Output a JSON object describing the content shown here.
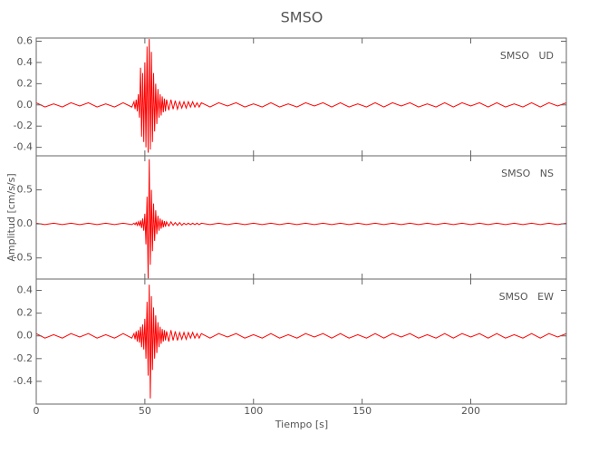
{
  "title": "SMSO",
  "x_label": "Tiempo [s]",
  "y_label": "Amplitud [cm/s/s]",
  "chart_data": [
    {
      "type": "line",
      "annotation": "SMSO   UD",
      "color": "#ff0000",
      "x": [
        0,
        4,
        8,
        12,
        16,
        20,
        24,
        28,
        32,
        36,
        40,
        44,
        45,
        45.5,
        46,
        46.5,
        47,
        47.5,
        48,
        48.5,
        49,
        49.5,
        50,
        50.5,
        51,
        51.5,
        52,
        52.5,
        53,
        53.5,
        54,
        54.5,
        55,
        55.5,
        56,
        56.5,
        57,
        57.5,
        58,
        58.5,
        59,
        59.5,
        60,
        61,
        62,
        63,
        64,
        65,
        66,
        67,
        68,
        69,
        70,
        71,
        72,
        73,
        74,
        75,
        76,
        80,
        84,
        88,
        92,
        96,
        100,
        104,
        108,
        112,
        116,
        120,
        124,
        128,
        132,
        136,
        140,
        144,
        148,
        152,
        156,
        160,
        164,
        168,
        172,
        176,
        180,
        184,
        188,
        192,
        196,
        200,
        204,
        208,
        212,
        216,
        220,
        224,
        228,
        232,
        236,
        240,
        244
      ],
      "values": [
        0.02,
        -0.02,
        0.01,
        -0.02,
        0.02,
        -0.01,
        0.02,
        -0.02,
        0.01,
        -0.02,
        0.02,
        -0.02,
        0.03,
        -0.04,
        0.05,
        -0.06,
        0.1,
        -0.12,
        0.35,
        -0.3,
        0.3,
        -0.35,
        0.4,
        -0.4,
        0.55,
        -0.45,
        0.62,
        -0.42,
        0.5,
        -0.35,
        0.3,
        -0.25,
        0.2,
        -0.18,
        0.15,
        -0.12,
        0.1,
        -0.1,
        0.08,
        -0.07,
        0.06,
        -0.06,
        0.05,
        -0.05,
        0.05,
        -0.04,
        0.04,
        -0.04,
        0.03,
        -0.03,
        0.03,
        -0.03,
        0.03,
        -0.02,
        0.03,
        -0.02,
        0.02,
        -0.02,
        0.02,
        -0.02,
        0.02,
        -0.01,
        0.02,
        -0.02,
        0.01,
        -0.02,
        0.02,
        -0.02,
        0.01,
        -0.02,
        0.02,
        -0.01,
        0.02,
        -0.02,
        0.02,
        -0.02,
        0.01,
        -0.02,
        0.02,
        -0.02,
        0.02,
        -0.01,
        0.02,
        -0.02,
        0.01,
        -0.02,
        0.02,
        -0.02,
        0.02,
        -0.01,
        0.02,
        -0.02,
        0.02,
        -0.02,
        0.01,
        -0.02,
        0.02,
        -0.02,
        0.02,
        -0.01,
        0.02
      ],
      "xlim": [
        0,
        244
      ],
      "xticks": [
        0,
        50,
        100,
        150,
        200
      ],
      "ylim": [
        -0.48,
        0.63
      ],
      "yticks": [
        -0.4,
        -0.2,
        {
          "value": 0,
          "label": "0.0"
        },
        0.2,
        0.4,
        0.6
      ]
    },
    {
      "type": "line",
      "annotation": "SMSO   NS",
      "color": "#ff0000",
      "x": [
        0,
        4,
        8,
        12,
        16,
        20,
        24,
        28,
        32,
        36,
        40,
        44,
        45,
        45.5,
        46,
        46.5,
        47,
        47.5,
        48,
        48.5,
        49,
        49.5,
        50,
        50.5,
        51,
        51.5,
        52,
        52.5,
        53,
        53.5,
        54,
        54.5,
        55,
        55.5,
        56,
        56.5,
        57,
        57.5,
        58,
        58.5,
        59,
        59.5,
        60,
        61,
        62,
        63,
        64,
        65,
        66,
        67,
        68,
        69,
        70,
        71,
        72,
        73,
        74,
        75,
        76,
        80,
        84,
        88,
        92,
        96,
        100,
        104,
        108,
        112,
        116,
        120,
        124,
        128,
        132,
        136,
        140,
        144,
        148,
        152,
        156,
        160,
        164,
        168,
        172,
        176,
        180,
        184,
        188,
        192,
        196,
        200,
        204,
        208,
        212,
        216,
        220,
        224,
        228,
        232,
        236,
        240,
        244
      ],
      "values": [
        0.01,
        -0.01,
        0.01,
        -0.01,
        0.01,
        -0.01,
        0.01,
        -0.01,
        0.01,
        -0.01,
        0.01,
        -0.01,
        0.01,
        -0.01,
        0.02,
        -0.02,
        0.03,
        -0.03,
        0.05,
        -0.06,
        0.08,
        -0.1,
        0.15,
        -0.3,
        0.4,
        -0.8,
        0.95,
        -0.6,
        0.5,
        -0.4,
        0.3,
        -0.25,
        0.2,
        -0.15,
        0.12,
        -0.1,
        0.08,
        -0.07,
        0.06,
        -0.05,
        0.04,
        -0.04,
        0.03,
        -0.03,
        0.03,
        -0.02,
        0.02,
        -0.02,
        0.02,
        -0.02,
        0.01,
        -0.01,
        0.01,
        -0.01,
        0.01,
        -0.01,
        0.01,
        -0.01,
        0.01,
        -0.01,
        0.01,
        -0.01,
        0.01,
        -0.01,
        0.01,
        -0.01,
        0.01,
        -0.01,
        0.01,
        -0.01,
        0.01,
        -0.01,
        0.01,
        -0.01,
        0.01,
        -0.01,
        0.01,
        -0.01,
        0.01,
        -0.01,
        0.01,
        -0.01,
        0.01,
        -0.01,
        0.01,
        -0.01,
        0.01,
        -0.01,
        0.01,
        -0.01,
        0.01,
        -0.01,
        0.01,
        -0.01,
        0.01,
        -0.01,
        0.01,
        -0.01,
        0.01,
        -0.01,
        0.01
      ],
      "xlim": [
        0,
        244
      ],
      "xticks": [
        0,
        50,
        100,
        150,
        200
      ],
      "ylim": [
        -0.81,
        1.0
      ],
      "yticks": [
        -0.5,
        {
          "value": 0,
          "label": "0.0"
        },
        0.5
      ]
    },
    {
      "type": "line",
      "annotation": "SMSO   EW",
      "color": "#ff0000",
      "x": [
        0,
        4,
        8,
        12,
        16,
        20,
        24,
        28,
        32,
        36,
        40,
        44,
        45,
        45.5,
        46,
        46.5,
        47,
        47.5,
        48,
        48.5,
        49,
        49.5,
        50,
        50.5,
        51,
        51.5,
        52,
        52.5,
        53,
        53.5,
        54,
        54.5,
        55,
        55.5,
        56,
        56.5,
        57,
        57.5,
        58,
        58.5,
        59,
        59.5,
        60,
        61,
        62,
        63,
        64,
        65,
        66,
        67,
        68,
        69,
        70,
        71,
        72,
        73,
        74,
        75,
        76,
        80,
        84,
        88,
        92,
        96,
        100,
        104,
        108,
        112,
        116,
        120,
        124,
        128,
        132,
        136,
        140,
        144,
        148,
        152,
        156,
        160,
        164,
        168,
        172,
        176,
        180,
        184,
        188,
        192,
        196,
        200,
        204,
        208,
        212,
        216,
        220,
        224,
        228,
        232,
        236,
        240,
        244
      ],
      "values": [
        0.02,
        -0.02,
        0.01,
        -0.02,
        0.02,
        -0.01,
        0.02,
        -0.02,
        0.01,
        -0.02,
        0.02,
        -0.02,
        0.02,
        -0.03,
        0.04,
        -0.05,
        0.05,
        -0.06,
        0.08,
        -0.1,
        0.1,
        -0.12,
        0.15,
        -0.2,
        0.3,
        -0.35,
        0.45,
        -0.55,
        0.35,
        -0.3,
        0.25,
        -0.2,
        0.18,
        -0.15,
        0.12,
        -0.1,
        0.08,
        -0.07,
        0.06,
        -0.05,
        0.05,
        -0.04,
        0.04,
        -0.05,
        0.05,
        -0.04,
        0.04,
        -0.04,
        0.03,
        -0.03,
        0.03,
        -0.03,
        0.03,
        -0.02,
        0.03,
        -0.02,
        0.02,
        -0.02,
        0.02,
        -0.02,
        0.02,
        -0.01,
        0.02,
        -0.02,
        0.01,
        -0.02,
        0.02,
        -0.02,
        0.01,
        -0.02,
        0.02,
        -0.01,
        0.02,
        -0.02,
        0.02,
        -0.02,
        0.01,
        -0.02,
        0.02,
        -0.02,
        0.02,
        -0.01,
        0.02,
        -0.02,
        0.01,
        -0.02,
        0.02,
        -0.02,
        0.02,
        -0.01,
        0.02,
        -0.02,
        0.02,
        -0.02,
        0.01,
        -0.02,
        0.02,
        -0.02,
        0.02,
        -0.01,
        0.02
      ],
      "xlim": [
        0,
        244
      ],
      "xticks": [
        0,
        50,
        100,
        150,
        200
      ],
      "ylim": [
        -0.6,
        0.5
      ],
      "yticks": [
        -0.4,
        -0.2,
        {
          "value": 0,
          "label": "0.0"
        },
        0.2,
        0.4
      ]
    }
  ]
}
